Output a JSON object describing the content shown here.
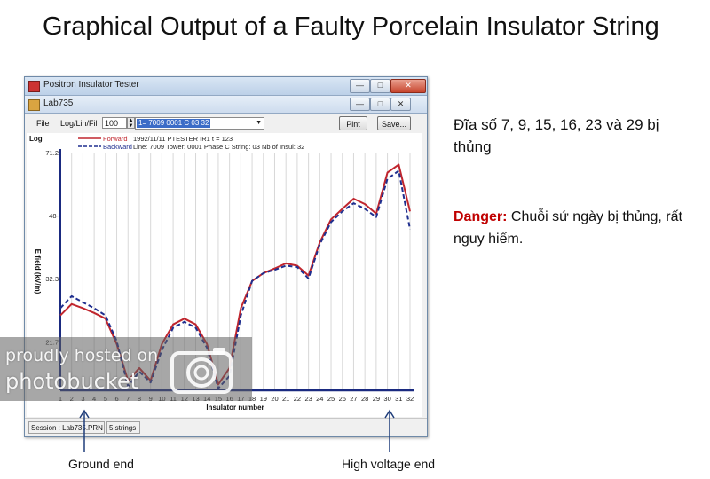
{
  "slide": {
    "title": "Graphical Output of a Faulty Porcelain Insulator String",
    "note_faults": "Đĩa số 7, 9, 15, 16, 23 và 29 bị thủng",
    "danger_label": "Danger:",
    "danger_text": " Chuỗi sứ ngày bị thủng, rất nguy hiểm.",
    "ground_end_label": "Ground end",
    "high_voltage_end_label": "High voltage end"
  },
  "window": {
    "outer_title": "Positron Insulator Tester",
    "inner_title": "Lab735",
    "buttons": {
      "minimize": "—",
      "maximize": "□",
      "close": "✕"
    },
    "menu": {
      "file": "File",
      "scale": "Log/Lin/Fil"
    },
    "zoom_value": "100",
    "selected_record": "1= 7009 0001 C 03 32",
    "print_label": "Pint",
    "save_label": "Save...",
    "status": {
      "session": "Session : Lab735.PRN",
      "strings": "5 strings"
    },
    "icons": {
      "app": "app-icon",
      "spin": "spin-arrows-icon",
      "dropdown": "chevron-down-icon"
    }
  },
  "chart_data": {
    "type": "line",
    "scale_label": "Log",
    "info_line1": "1992/11/11 PTESTER IR1     t = 123",
    "info_line2": "Line: 7009 Tower: 0001 Phase C String: 03 Nb of Insul: 32",
    "xlabel": "Insulator number",
    "ylabel": "E field (kV/m)",
    "x": [
      1,
      2,
      3,
      4,
      5,
      6,
      7,
      8,
      9,
      10,
      11,
      12,
      13,
      14,
      15,
      16,
      17,
      18,
      19,
      20,
      21,
      22,
      23,
      24,
      25,
      26,
      27,
      28,
      29,
      30,
      31,
      32
    ],
    "xlim": [
      1,
      32
    ],
    "ylim": [
      16.0,
      71.2
    ],
    "y_ticks": [
      21.7,
      32.3,
      48,
      71.2
    ],
    "y_tick_labels": [
      "21.7",
      "32.3",
      "48-",
      "71.2"
    ],
    "grid": "vertical",
    "legend": "top-left",
    "series": [
      {
        "name": "Forward",
        "color": "#c0262e",
        "dash": "solid",
        "values": [
          25.6,
          27.5,
          26.8,
          26.0,
          25.1,
          21.4,
          17.0,
          18.4,
          17.0,
          21.4,
          24.2,
          25.1,
          24.2,
          21.4,
          16.6,
          18.4,
          26.8,
          31.8,
          33.4,
          34.4,
          35.5,
          35.0,
          32.9,
          40.5,
          46.8,
          50.0,
          53.3,
          51.5,
          48.5,
          62.8,
          66.0,
          49.2
        ]
      },
      {
        "name": "Backward",
        "color": "#1f2f8f",
        "dash": "dashed",
        "values": [
          26.8,
          28.9,
          27.8,
          26.8,
          25.6,
          21.8,
          16.4,
          18.0,
          16.8,
          20.6,
          23.7,
          24.6,
          23.7,
          20.9,
          16.2,
          17.5,
          25.6,
          31.8,
          33.4,
          34.1,
          35.0,
          34.7,
          32.3,
          40.0,
          46.0,
          49.2,
          51.8,
          50.0,
          47.5,
          60.4,
          63.5,
          44.0
        ]
      }
    ]
  },
  "watermark": {
    "line1": "proudly hosted on",
    "line2": "photobucket"
  }
}
